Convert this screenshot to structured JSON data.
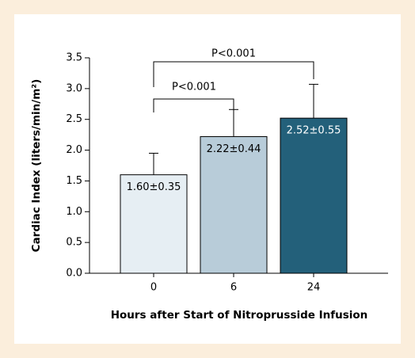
{
  "chart_data": {
    "type": "bar",
    "x_label": "Hours after Start of Nitroprusside Infusion",
    "y_label": "Cardiac Index (liters/min/m²)",
    "categories": [
      "0",
      "6",
      "24"
    ],
    "values": [
      1.6,
      2.22,
      2.52
    ],
    "errors": [
      0.35,
      0.44,
      0.55
    ],
    "value_labels": [
      "1.60±0.35",
      "2.22±0.44",
      "2.52±0.55"
    ],
    "colors": [
      "#e6eef3",
      "#b8ccd9",
      "#23607a"
    ],
    "label_colors": [
      "#000000",
      "#000000",
      "#ffffff"
    ],
    "ylim": [
      0,
      3.5
    ],
    "yticks": [
      {
        "value": 0,
        "label": "0.0"
      },
      0.5,
      {
        "value": 1,
        "label": "1.0"
      },
      1.5,
      {
        "value": 2,
        "label": "2.0"
      },
      2.5,
      {
        "value": 3,
        "label": "3.0"
      },
      3.5
    ],
    "annotations": [
      "P<0.001",
      "P<0.001"
    ]
  }
}
